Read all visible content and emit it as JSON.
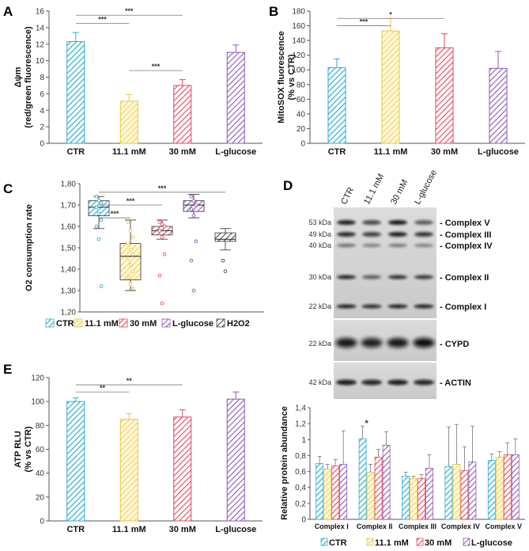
{
  "colors": {
    "ctr": "#2aaed6",
    "mm11": "#e9c73c",
    "mm30": "#e2485c",
    "lglu": "#8e57b5",
    "h2o2": "#444444",
    "axis": "#555555",
    "sig": "#7a7a7a"
  },
  "groups": [
    "CTR",
    "11.1 mM",
    "30 mM",
    "L-glucose"
  ],
  "panels": {
    "A": {
      "letter": "A"
    },
    "B": {
      "letter": "B"
    },
    "C": {
      "letter": "C"
    },
    "D": {
      "letter": "D"
    },
    "E": {
      "letter": "E"
    }
  },
  "chart_data": [
    {
      "panel": "A",
      "type": "bar",
      "categories": [
        "CTR",
        "11.1 mM",
        "30 mM",
        "L-glucose"
      ],
      "values": [
        12.3,
        5.1,
        7.0,
        11.0
      ],
      "errors": [
        1.1,
        0.8,
        0.7,
        0.9
      ],
      "ylabel_line1": "Δψm",
      "ylabel_line2": "(red/green fluorescence)",
      "ylim": [
        0,
        16
      ],
      "yticks": [
        0,
        2,
        4,
        6,
        8,
        10,
        12,
        14,
        16
      ],
      "significance": [
        {
          "from": 0,
          "to": 1,
          "label": "***",
          "level": 14.5
        },
        {
          "from": 0,
          "to": 2,
          "label": "***",
          "level": 15.5
        },
        {
          "from": 1,
          "to": 2,
          "label": "***",
          "level": 8.8
        }
      ]
    },
    {
      "panel": "B",
      "type": "bar",
      "categories": [
        "CTR",
        "11.1 mM",
        "30 mM",
        "L-glucose"
      ],
      "values": [
        103,
        153,
        130,
        102
      ],
      "errors": [
        12,
        17,
        19,
        23
      ],
      "ylabel_line1": "MitoSOX fluorescence",
      "ylabel_line2": "(% vs CTR)",
      "ylim": [
        0,
        180
      ],
      "yticks": [
        0,
        20,
        40,
        60,
        80,
        100,
        120,
        140,
        160,
        180
      ],
      "significance": [
        {
          "from": 0,
          "to": 1,
          "label": "***",
          "level": 160
        },
        {
          "from": 0,
          "to": 2,
          "label": "*",
          "level": 170
        }
      ]
    },
    {
      "panel": "C",
      "type": "box",
      "categories": [
        "CTR",
        "11.1 mM",
        "30 mM",
        "L-glucose",
        "H2O2"
      ],
      "ylabel": "O2 consumption rate",
      "ylim": [
        1.2,
        1.8
      ],
      "ytick_labels": [
        "1,20",
        "1,30",
        "1,40",
        "1,50",
        "1,60",
        "1,70",
        "1,80"
      ],
      "boxes": [
        {
          "q1": 1.65,
          "median": 1.69,
          "q3": 1.72,
          "whisker_low": 1.59,
          "whisker_high": 1.74,
          "points": [
            1.74,
            1.72,
            1.71,
            1.69,
            1.66,
            1.63,
            1.6,
            1.54,
            1.32
          ]
        },
        {
          "q1": 1.35,
          "median": 1.46,
          "q3": 1.52,
          "whisker_low": 1.3,
          "whisker_high": 1.63,
          "points": [
            1.62,
            1.58,
            1.55,
            1.52,
            1.49,
            1.47,
            1.45,
            1.42,
            1.39,
            1.36,
            1.33,
            1.31
          ]
        },
        {
          "q1": 1.56,
          "median": 1.58,
          "q3": 1.6,
          "whisker_low": 1.54,
          "whisker_high": 1.63,
          "points": [
            1.62,
            1.61,
            1.6,
            1.58,
            1.55,
            1.47,
            1.37,
            1.24
          ]
        },
        {
          "q1": 1.67,
          "median": 1.7,
          "q3": 1.72,
          "whisker_low": 1.64,
          "whisker_high": 1.75,
          "points": [
            1.74,
            1.72,
            1.7,
            1.68,
            1.65,
            1.53,
            1.44,
            1.3
          ]
        },
        {
          "q1": 1.53,
          "median": 1.54,
          "q3": 1.57,
          "whisker_low": 1.49,
          "whisker_high": 1.59,
          "points": [
            1.44,
            1.39
          ]
        }
      ],
      "significance": [
        {
          "from": 0,
          "to": 1,
          "label": "***",
          "level": 1.64
        },
        {
          "from": 0,
          "to": 2,
          "label": "***",
          "level": 1.7
        },
        {
          "from": 0,
          "to": 4,
          "label": "***",
          "level": 1.76
        }
      ],
      "legend": [
        "CTR",
        "11.1 mM",
        "30 mM",
        "L-glucose",
        "H2O2"
      ]
    },
    {
      "panel": "D",
      "type": "bar",
      "categories": [
        "Complex I",
        "Complex II",
        "Complex III",
        "Complex IV",
        "Complex V"
      ],
      "series": [
        {
          "name": "CTR",
          "values": [
            0.7,
            1.01,
            0.54,
            0.66,
            0.74
          ],
          "errors": [
            0.09,
            0.16,
            0.05,
            0.5,
            0.08
          ]
        },
        {
          "name": "11.1 mM",
          "values": [
            0.63,
            0.59,
            0.51,
            0.69,
            0.78
          ],
          "errors": [
            0.06,
            0.1,
            0.03,
            0.5,
            0.07
          ]
        },
        {
          "name": "30 mM",
          "values": [
            0.67,
            0.78,
            0.51,
            0.61,
            0.81
          ],
          "errors": [
            0.08,
            0.1,
            0.05,
            0.3,
            0.15
          ]
        },
        {
          "name": "L-glucose",
          "values": [
            0.69,
            0.93,
            0.64,
            0.72,
            0.81
          ],
          "errors": [
            0.42,
            0.17,
            0.17,
            0.45,
            0.2
          ]
        }
      ],
      "ylabel": "Relative protein abundance",
      "ylim": [
        0,
        1.4
      ],
      "ytick_labels": [
        "0",
        "0,2",
        "0,4",
        "0,6",
        "0,8",
        "1",
        "1,2",
        "1,4"
      ],
      "significance": [
        {
          "category": 1,
          "label": "*"
        }
      ],
      "legend": [
        "CTR",
        "11.1 mM",
        "30 mM",
        "L-glucose"
      ]
    },
    {
      "panel": "E",
      "type": "bar",
      "categories": [
        "CTR",
        "11.1 mM",
        "30 mM",
        "L-glucose"
      ],
      "values": [
        100,
        85,
        87,
        102
      ],
      "errors": [
        3,
        5,
        6,
        6
      ],
      "ylabel_line1": "ATP RLU",
      "ylabel_line2": "(% vs CTR)",
      "ylim": [
        0,
        120
      ],
      "yticks": [
        0,
        20,
        40,
        60,
        80,
        100,
        120
      ],
      "significance": [
        {
          "from": 0,
          "to": 1,
          "label": "**",
          "level": 108
        },
        {
          "from": 0,
          "to": 2,
          "label": "**",
          "level": 114
        }
      ]
    }
  ],
  "blot": {
    "lane_labels": [
      "CTR",
      "11.1 mM",
      "30 mM",
      "L-glucose"
    ],
    "markers": [
      "53 kDa",
      "49 kDa",
      "40 kDa",
      "30 kDa",
      "22 kDa",
      "22 kDa",
      "42 kDa"
    ],
    "bands": [
      "- Complex V",
      "- Complex III",
      "- Complex IV",
      "- Complex II",
      "- Complex I",
      "- CYPD",
      "- ACTIN"
    ]
  }
}
